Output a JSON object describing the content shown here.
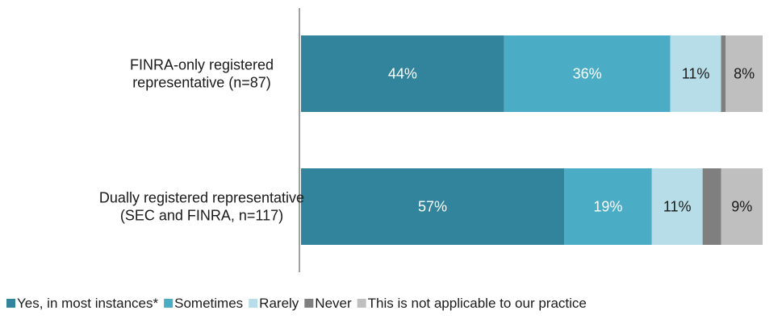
{
  "chart_data": {
    "type": "bar",
    "orientation": "horizontal",
    "stacked": true,
    "categories": [
      [
        "FINRA-only registered",
        "representative (n=87)"
      ],
      [
        "Dually registered representative",
        "(SEC and FINRA, n=117)"
      ]
    ],
    "series": [
      {
        "name": "Yes, in most instances*",
        "values": [
          44,
          57
        ],
        "labels": [
          "44%",
          "57%"
        ],
        "color": "#31849b"
      },
      {
        "name": "Sometimes",
        "values": [
          36,
          19
        ],
        "labels": [
          "36%",
          "19%"
        ],
        "color": "#4bacc6"
      },
      {
        "name": "Rarely",
        "values": [
          11,
          11
        ],
        "labels": [
          "11%",
          "11%"
        ],
        "color": "#b7dee8"
      },
      {
        "name": "Never",
        "values": [
          1,
          4
        ],
        "labels": [
          "",
          ""
        ],
        "color": "#7f7f7f"
      },
      {
        "name": "This is not applicable to our practice",
        "values": [
          8,
          9
        ],
        "labels": [
          "8%",
          "9%"
        ],
        "color": "#bfbfbf"
      }
    ],
    "xlim": [
      0,
      100
    ],
    "grid": false,
    "legend": "bottom"
  }
}
